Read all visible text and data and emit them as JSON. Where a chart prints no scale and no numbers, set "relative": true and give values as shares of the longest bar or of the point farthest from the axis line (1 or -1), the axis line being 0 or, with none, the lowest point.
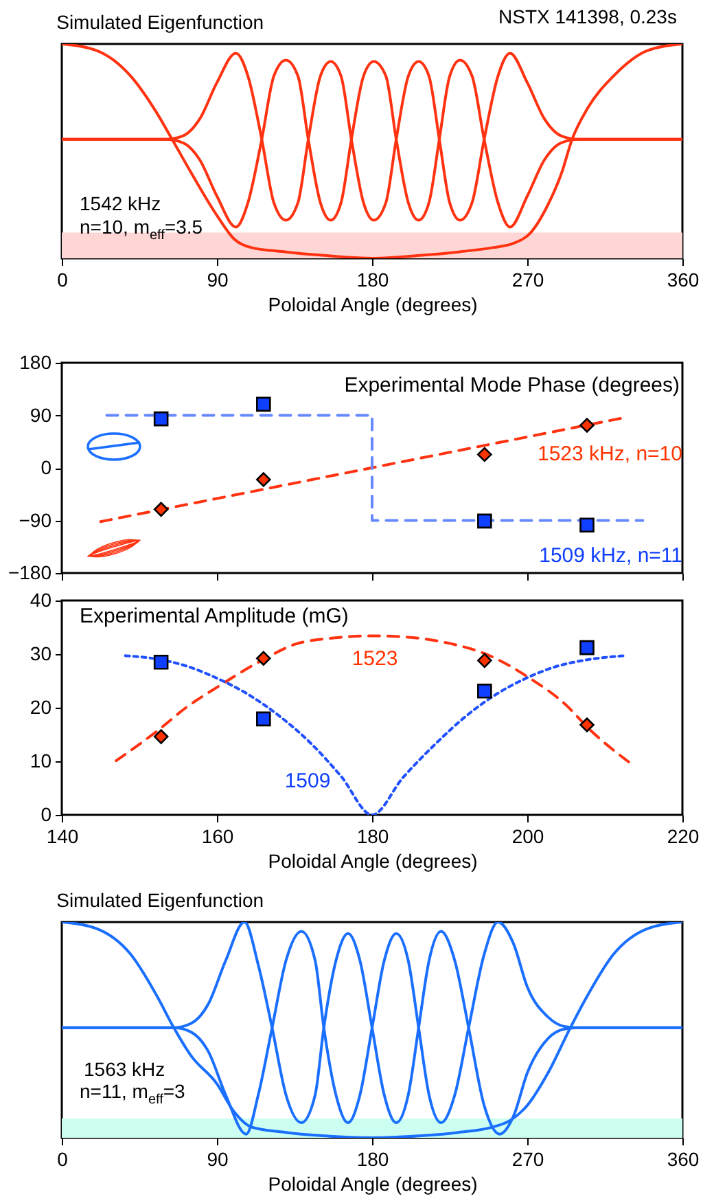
{
  "chart_data": [
    {
      "type": "line",
      "title": "Simulated Eigenfunction",
      "xlabel": "Poloidal Angle (degrees)",
      "relative": true,
      "xlim": [
        0,
        360
      ],
      "xticks": [
        0,
        90,
        180,
        270,
        360
      ],
      "annotations": [
        "NSTX 141398, 0.23s",
        "1542 kHz",
        "n=10, m$_{eff}$=3.5"
      ],
      "bands": [
        {
          "axis": "y",
          "from": 0,
          "to": 0.12,
          "color": "#ffd6d6"
        }
      ],
      "line_style": "solid",
      "series": [
        {
          "color": "#ff3311",
          "x": [
            0,
            20,
            40,
            55,
            64,
            75,
            90,
            100,
            110,
            130,
            150,
            180,
            210,
            230,
            250,
            262,
            272,
            282,
            290,
            296,
            305,
            320,
            340,
            360
          ],
          "values": [
            1,
            0.97,
            0.85,
            0.68,
            0.555,
            0.4,
            0.2,
            0.09,
            0.05,
            0.03,
            0.015,
            0,
            0.015,
            0.03,
            0.05,
            0.07,
            0.12,
            0.25,
            0.4,
            0.555,
            0.7,
            0.85,
            0.97,
            1
          ]
        },
        {
          "color": "#ff3311",
          "x": [
            0,
            60,
            70,
            80,
            90,
            101,
            108,
            116,
            123,
            130,
            137,
            143,
            150,
            156,
            162,
            168,
            175,
            181,
            188,
            194,
            201,
            207,
            213,
            219,
            225,
            231,
            238,
            245,
            253,
            260,
            270,
            280,
            290,
            300,
            360
          ],
          "values": [
            0.555,
            0.555,
            0.57,
            0.65,
            0.82,
            0.957,
            0.85,
            0.555,
            0.26,
            0.178,
            0.26,
            0.555,
            0.85,
            0.918,
            0.85,
            0.555,
            0.26,
            0.178,
            0.26,
            0.555,
            0.85,
            0.918,
            0.85,
            0.555,
            0.26,
            0.178,
            0.26,
            0.555,
            0.85,
            0.957,
            0.82,
            0.65,
            0.57,
            0.555,
            0.555
          ]
        },
        {
          "color": "#ff3311",
          "x": [
            0,
            60,
            70,
            80,
            90,
            101,
            108,
            116,
            123,
            130,
            137,
            143,
            150,
            156,
            162,
            168,
            175,
            181,
            188,
            194,
            201,
            207,
            213,
            219,
            225,
            231,
            238,
            245,
            253,
            260,
            270,
            280,
            290,
            300,
            360
          ],
          "values": [
            0.555,
            0.555,
            0.54,
            0.46,
            0.29,
            0.146,
            0.26,
            0.555,
            0.85,
            0.925,
            0.85,
            0.555,
            0.26,
            0.178,
            0.26,
            0.555,
            0.85,
            0.918,
            0.85,
            0.555,
            0.26,
            0.178,
            0.26,
            0.555,
            0.85,
            0.925,
            0.85,
            0.555,
            0.26,
            0.146,
            0.29,
            0.46,
            0.54,
            0.555,
            0.555
          ]
        }
      ]
    },
    {
      "type": "scatter",
      "xlim": [
        140,
        220
      ],
      "xticks": [
        140,
        160,
        180,
        200,
        220
      ],
      "ylim": [
        -180,
        180
      ],
      "yticks": [
        -180,
        -90,
        0,
        90,
        180
      ],
      "tick_labels": "y",
      "annotations": [
        "Experimental Mode Phase (degrees)"
      ],
      "series": [
        {
          "type": "line",
          "line_style": "dashed",
          "color": "#ff3311",
          "x": [
            145,
            212.5
          ],
          "values": [
            -92,
            86
          ]
        },
        {
          "type": "line",
          "line_style": "dashed",
          "color": "#6688ff",
          "x": [
            145.8,
            180,
            180,
            214.9
          ],
          "values": [
            90,
            90,
            -90,
            -90
          ]
        },
        {
          "name": "1523 kHz, n=10",
          "marker": "diamond",
          "color": "#ff3300",
          "x": [
            152.8,
            166.0,
            194.5,
            207.7
          ],
          "values": [
            -71,
            -20,
            23,
            73
          ]
        },
        {
          "name": "1509 kHz, n=11",
          "marker": "square",
          "color": "#1040ff",
          "x": [
            152.8,
            166.0,
            194.5,
            207.7
          ],
          "values": [
            84,
            109,
            -91,
            -98
          ]
        }
      ]
    },
    {
      "type": "scatter",
      "xlabel": "Poloidal Angle (degrees)",
      "xlim": [
        140,
        220
      ],
      "xticks": [
        140,
        160,
        180,
        200,
        220
      ],
      "ylim": [
        0,
        40
      ],
      "yticks": [
        0,
        10,
        20,
        30,
        40
      ],
      "annotations": [
        "Experimental Amplitude (mG)"
      ],
      "series": [
        {
          "type": "line",
          "line_style": "dashed",
          "color": "#ff3311",
          "x": [
            147,
            152.6,
            156,
            160,
            166,
            170,
            175,
            180,
            185,
            190,
            195,
            200,
            205,
            208,
            213.7
          ],
          "values": [
            10.1,
            16,
            20,
            23.8,
            29,
            31.8,
            33,
            33.4,
            33.1,
            32,
            29.8,
            25.8,
            20.5,
            16,
            9.2
          ]
        },
        {
          "type": "line",
          "line_style": "dotted",
          "color": "#2050ff",
          "x": [
            148.2,
            152.6,
            156,
            160,
            164,
            168,
            172,
            176,
            180,
            184,
            188,
            192,
            196,
            200,
            204,
            208,
            212.6
          ],
          "values": [
            29.7,
            29,
            27.8,
            25.5,
            22.5,
            18.5,
            13.5,
            7.2,
            0,
            7,
            13,
            18.3,
            22.5,
            25.6,
            27.8,
            29,
            29.7
          ]
        },
        {
          "name": "1523",
          "marker": "diamond",
          "color": "#ff3300",
          "x": [
            152.8,
            166.0,
            194.5,
            207.7
          ],
          "values": [
            14.6,
            29.2,
            28.8,
            16.8
          ]
        },
        {
          "name": "1509",
          "marker": "square",
          "color": "#1040ff",
          "x": [
            152.8,
            166.0,
            194.5,
            207.7
          ],
          "values": [
            28.5,
            17.9,
            23.1,
            31.2
          ]
        }
      ]
    },
    {
      "type": "line",
      "title": "Simulated Eigenfunction",
      "xlabel": "Poloidal Angle (degrees)",
      "relative": true,
      "xlim": [
        0,
        360
      ],
      "xticks": [
        0,
        90,
        180,
        270,
        360
      ],
      "annotations": [
        "1563 kHz",
        "n=11, m$_{eff}$=3"
      ],
      "bands": [
        {
          "axis": "y",
          "from": 0,
          "to": 0.09,
          "color": "#ccfff2"
        }
      ],
      "line_style": "solid",
      "series": [
        {
          "color": "#1a6fff",
          "x": [
            0,
            20,
            40,
            55,
            65,
            75,
            90,
            100,
            110,
            130,
            150,
            180,
            210,
            230,
            250,
            260,
            270,
            282,
            295,
            305,
            320,
            340,
            360
          ],
          "values": [
            1,
            0.97,
            0.85,
            0.66,
            0.51,
            0.38,
            0.25,
            0.12,
            0.05,
            0.025,
            0.01,
            0,
            0.01,
            0.025,
            0.05,
            0.08,
            0.15,
            0.3,
            0.51,
            0.66,
            0.85,
            0.97,
            1
          ]
        },
        {
          "color": "#1a6fff",
          "x": [
            0,
            65,
            75,
            85,
            95,
            106,
            114,
            122,
            130,
            139,
            147,
            152,
            159,
            166,
            173,
            180,
            187,
            194,
            201,
            207,
            213,
            220,
            228,
            236,
            245,
            254,
            262,
            270,
            282,
            292,
            300,
            360
          ],
          "values": [
            0.51,
            0.51,
            0.53,
            0.62,
            0.82,
            1,
            0.8,
            0.51,
            0.2,
            0.07,
            0.2,
            0.51,
            0.82,
            0.947,
            0.82,
            0.51,
            0.2,
            0.07,
            0.2,
            0.51,
            0.82,
            0.957,
            0.82,
            0.51,
            0.15,
            0.017,
            0.1,
            0.3,
            0.46,
            0.505,
            0.51,
            0.51
          ]
        },
        {
          "color": "#1a6fff",
          "x": [
            0,
            65,
            75,
            85,
            95,
            107,
            114,
            122,
            130,
            139,
            147,
            152,
            159,
            166,
            173,
            180,
            187,
            194,
            201,
            207,
            213,
            220,
            228,
            236,
            245,
            253,
            262,
            270,
            282,
            292,
            300,
            360
          ],
          "values": [
            0.51,
            0.51,
            0.49,
            0.4,
            0.2,
            0.017,
            0.2,
            0.51,
            0.82,
            0.957,
            0.82,
            0.51,
            0.2,
            0.07,
            0.2,
            0.51,
            0.82,
            0.947,
            0.82,
            0.51,
            0.2,
            0.07,
            0.2,
            0.51,
            0.85,
            1,
            0.9,
            0.7,
            0.56,
            0.515,
            0.51,
            0.51
          ]
        }
      ]
    }
  ]
}
